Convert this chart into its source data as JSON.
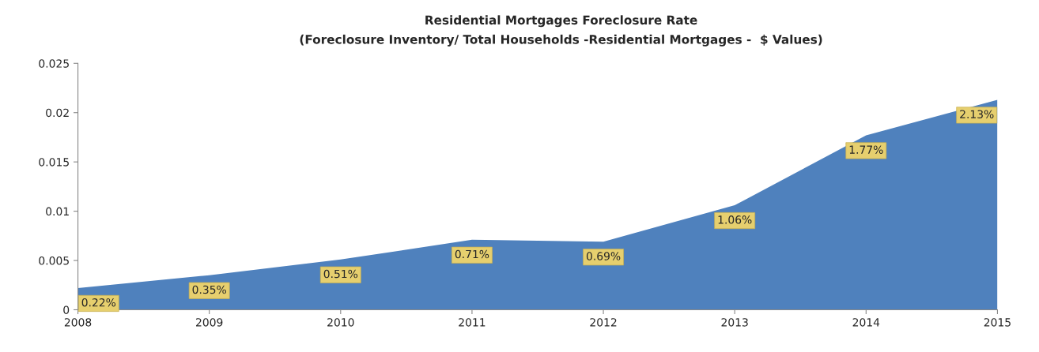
{
  "chart_data": {
    "type": "area",
    "title": "Residential Mortgages Foreclosure Rate",
    "subtitle": "(Foreclosure Inventory/ Total Households -Residential Mortgages -  $ Values)",
    "categories": [
      "2008",
      "2009",
      "2010",
      "2011",
      "2012",
      "2013",
      "2014",
      "2015"
    ],
    "series": [
      {
        "color": "#4f81bd",
        "values": [
          0.0022,
          0.0035,
          0.0051,
          0.0071,
          0.0069,
          0.0106,
          0.0177,
          0.0213
        ],
        "value_labels": [
          "0.22%",
          "0.35%",
          "0.51%",
          "0.71%",
          "0.69%",
          "1.06%",
          "1.77%",
          "2.13%"
        ]
      }
    ],
    "ylim": [
      0,
      0.025
    ],
    "yticks": [
      0,
      0.005,
      0.01,
      0.015,
      0.02,
      0.025
    ],
    "grid": false,
    "legend": false
  }
}
